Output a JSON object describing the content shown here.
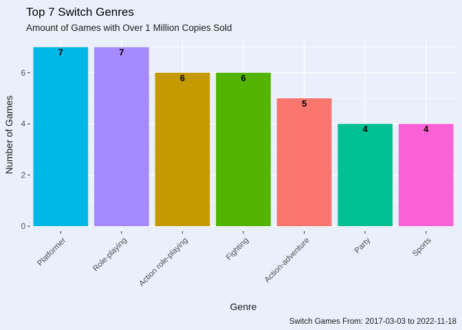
{
  "chart_data": {
    "type": "bar",
    "title": "Top 7 Switch Genres",
    "subtitle": "Amount of Games with Over 1 Million Copies Sold",
    "xlabel": "Genre",
    "ylabel": "Number of Games",
    "caption": "Switch Games From: 2017-03-03 to 2022-11-18",
    "categories": [
      "Platformer",
      "Role-playing",
      "Action role-playing",
      "Fighting",
      "Action-adventure",
      "Party",
      "Sports"
    ],
    "values": [
      7,
      7,
      6,
      6,
      5,
      4,
      4
    ],
    "colors": [
      "#00b8e7",
      "#a58afe",
      "#c49a00",
      "#53b400",
      "#f8766d",
      "#00c094",
      "#fb61d7"
    ],
    "yticks": [
      0,
      2,
      4,
      6
    ],
    "ylim": [
      0,
      7.35
    ],
    "grid": true,
    "legend": "none",
    "background": "#eaf0fb",
    "gridline_color": "#ffffff"
  }
}
